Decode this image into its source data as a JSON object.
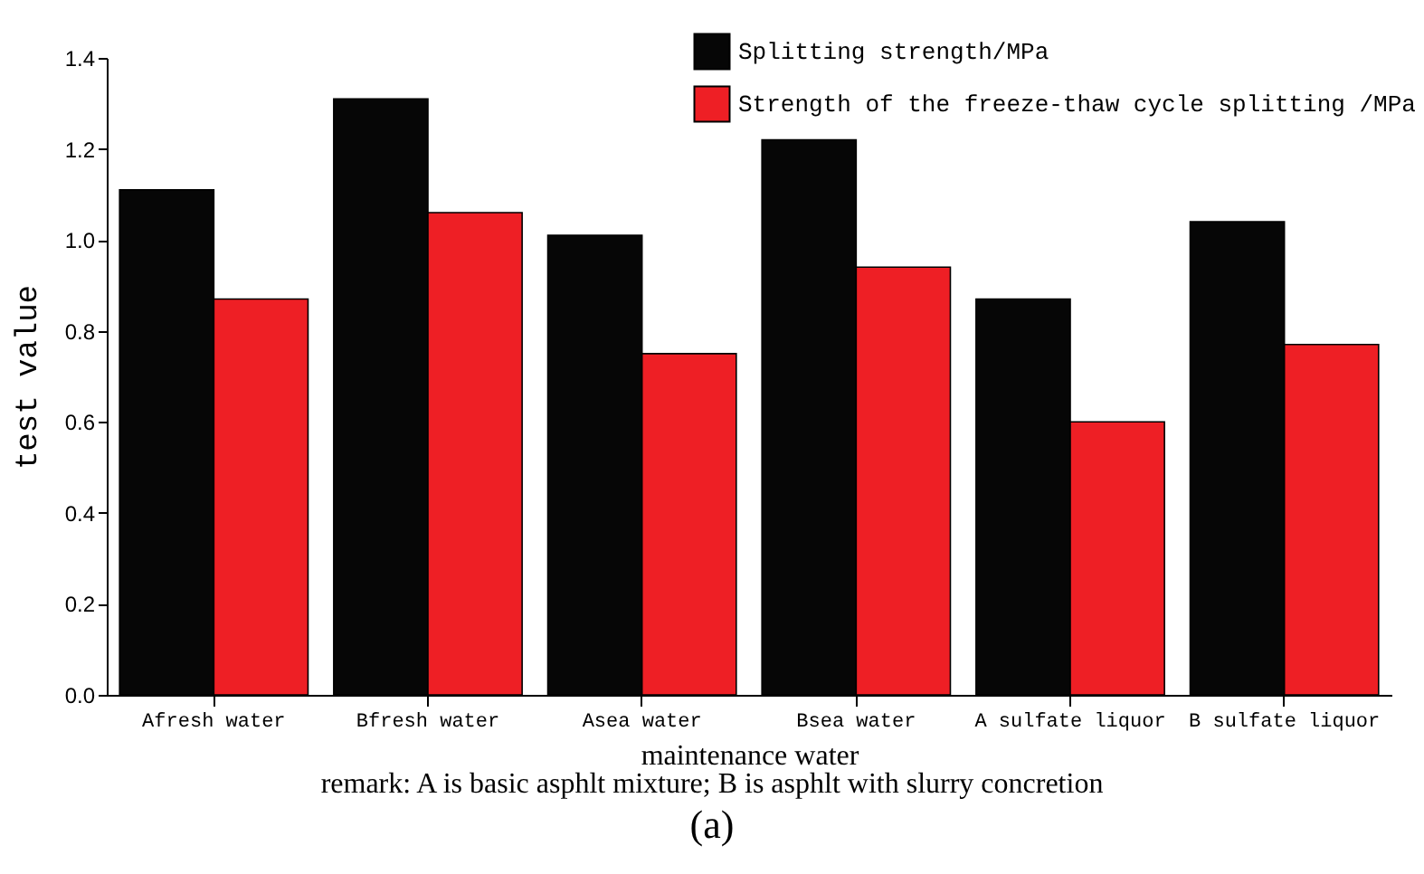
{
  "chart_data": {
    "type": "bar",
    "categories": [
      "Afresh water",
      "Bfresh water",
      "Asea water",
      "Bsea water",
      "A sulfate liquor",
      "B sulfate liquor"
    ],
    "series": [
      {
        "name": "Splitting strength/MPa",
        "color": "#060606",
        "values": [
          1.11,
          1.31,
          1.01,
          1.22,
          0.87,
          1.04
        ]
      },
      {
        "name": "Strength of the freeze-thaw cycle splitting /MPa",
        "color": "#ee1f25",
        "values": [
          0.87,
          1.06,
          0.75,
          0.94,
          0.6,
          0.77
        ]
      }
    ],
    "xlabel": "maintenance water",
    "ylabel": "test value",
    "ylim": [
      0,
      1.4
    ],
    "yticks": [
      {
        "value": 0,
        "label": "0.0"
      },
      0.2,
      0.4,
      0.6,
      0.8,
      {
        "value": 1,
        "label": "1.0"
      },
      1.2,
      1.4
    ],
    "legend": "top right",
    "grid": false,
    "annotations": [
      "remark:  A is basic asphlt mixture;  B is asphlt with slurry concretion",
      "(a)"
    ]
  }
}
